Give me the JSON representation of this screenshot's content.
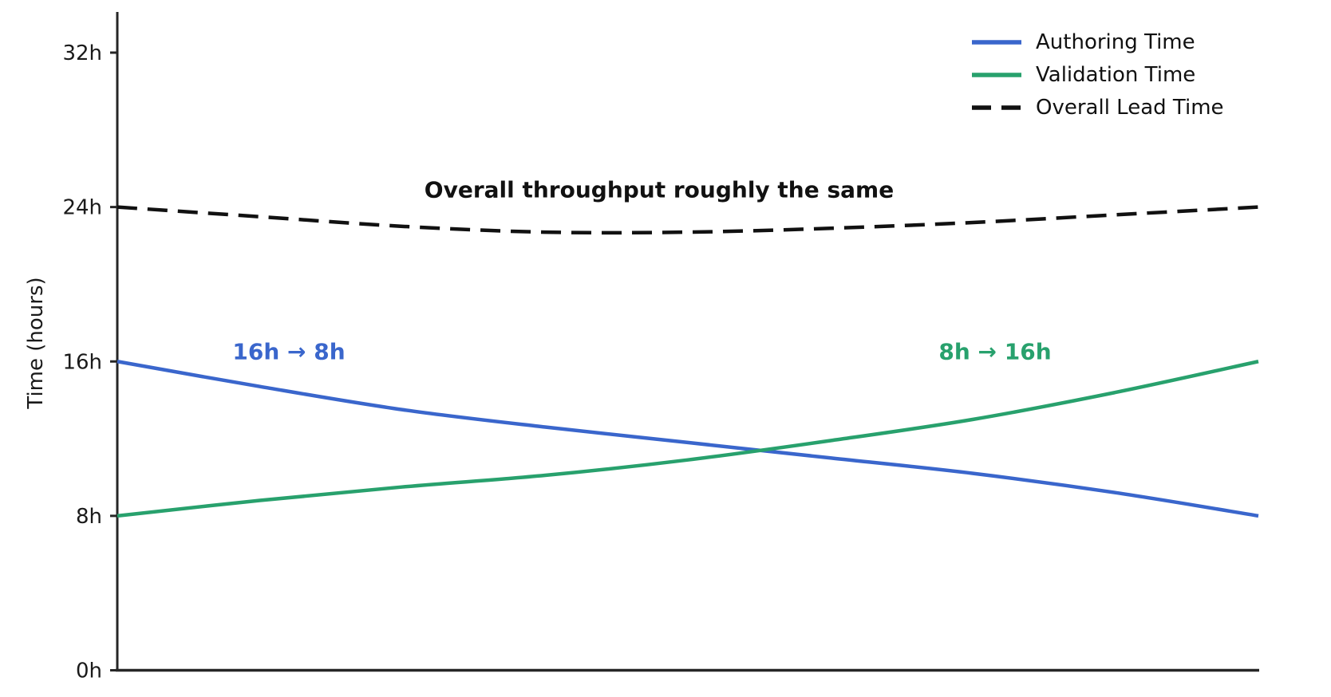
{
  "figure": {
    "background": "#ffffff",
    "axis_color": "#262626",
    "text_color": "#1a1a1a"
  },
  "y_axis": {
    "label": "Time (hours)",
    "ticks": [
      {
        "value": 0,
        "label": "0h"
      },
      {
        "value": 8,
        "label": "8h"
      },
      {
        "value": 16,
        "label": "16h"
      },
      {
        "value": 24,
        "label": "24h"
      },
      {
        "value": 32,
        "label": "32h"
      }
    ]
  },
  "annotations": {
    "throughput": {
      "text": "Overall throughput roughly the same",
      "color": "#111111"
    },
    "authoring": {
      "text": "16h → 8h",
      "color": "#3a66cc"
    },
    "validation": {
      "text": "8h → 16h",
      "color": "#28a16d"
    }
  },
  "legend": {
    "position": "upper right",
    "items": [
      {
        "label": "Authoring Time",
        "color": "#3a66cc",
        "dash": false
      },
      {
        "label": "Validation Time",
        "color": "#28a16d",
        "dash": false
      },
      {
        "label": "Overall Lead Time",
        "color": "#111111",
        "dash": true
      }
    ]
  },
  "chart_data": {
    "type": "line",
    "title": "",
    "xlabel": "",
    "ylabel": "Time (hours)",
    "ylim": [
      0,
      34.2
    ],
    "grid": false,
    "legend_position": "upper right",
    "x_axis_note": "no x tick labels shown; x normalized 0..1",
    "x": [
      0,
      0.125,
      0.25,
      0.375,
      0.5,
      0.625,
      0.75,
      0.875,
      1
    ],
    "series": [
      {
        "name": "Authoring Time",
        "color": "#3a66cc",
        "style": "solid",
        "values": [
          16.0,
          14.7,
          13.5,
          12.6,
          11.8,
          11.0,
          10.2,
          9.2,
          8.0
        ]
      },
      {
        "name": "Validation Time",
        "color": "#28a16d",
        "style": "solid",
        "values": [
          8.0,
          8.8,
          9.5,
          10.1,
          10.9,
          11.9,
          13.0,
          14.4,
          16.0
        ]
      },
      {
        "name": "Overall Lead Time",
        "color": "#111111",
        "style": "dashed",
        "values": [
          24.0,
          23.5,
          23.0,
          22.7,
          22.7,
          22.9,
          23.2,
          23.6,
          24.0
        ]
      }
    ],
    "key_points": {
      "authoring_start_h": 16,
      "authoring_end_h": 8,
      "validation_start_h": 8,
      "validation_end_h": 16,
      "lead_time_ends_h": 24,
      "lead_time_min_h": 22.6,
      "crossing_value_h": 11.3
    }
  }
}
